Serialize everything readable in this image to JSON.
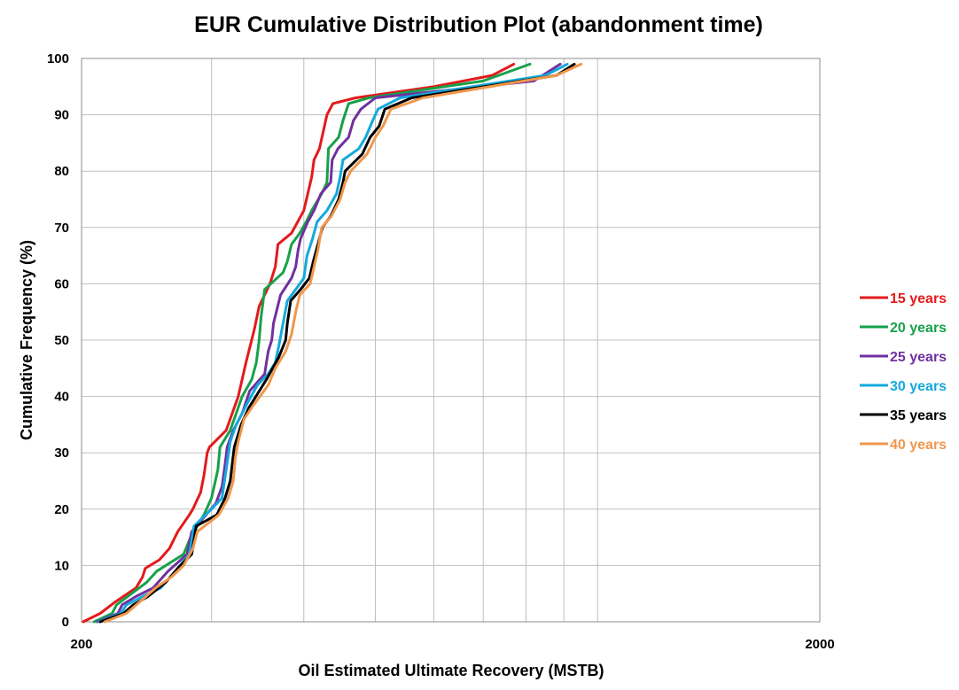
{
  "chart_data": {
    "type": "line",
    "title": "EUR Cumulative Distribution Plot (abandonment time)",
    "xlabel": "Oil Estimated Ultimate Recovery (MSTB)",
    "ylabel": "Cumulative Frequency (%)",
    "x_scale": "log",
    "xlim": [
      200,
      2000
    ],
    "ylim": [
      0,
      100
    ],
    "x_ticks": [
      "200",
      "2000"
    ],
    "y_ticks": [
      "0",
      "10",
      "20",
      "30",
      "40",
      "50",
      "60",
      "70",
      "80",
      "90",
      "100"
    ],
    "grid": true,
    "legend_position": "right",
    "series": [
      {
        "name": "15 years",
        "color": "#e31a1c",
        "points": [
          [
            201,
            0
          ],
          [
            212,
            1.5
          ],
          [
            222,
            3.5
          ],
          [
            237,
            6
          ],
          [
            242,
            8
          ],
          [
            244,
            9.5
          ],
          [
            255,
            11
          ],
          [
            263,
            13
          ],
          [
            270,
            16
          ],
          [
            280,
            19
          ],
          [
            283,
            20
          ],
          [
            290,
            23
          ],
          [
            293,
            26
          ],
          [
            296,
            30
          ],
          [
            298,
            31
          ],
          [
            314,
            34
          ],
          [
            326,
            40
          ],
          [
            334,
            46
          ],
          [
            343,
            52
          ],
          [
            348,
            56
          ],
          [
            360,
            60
          ],
          [
            366,
            63
          ],
          [
            369,
            67
          ],
          [
            385,
            69
          ],
          [
            400,
            73
          ],
          [
            410,
            79
          ],
          [
            413,
            82
          ],
          [
            420,
            84
          ],
          [
            425,
            87
          ],
          [
            430,
            90
          ],
          [
            438,
            92
          ],
          [
            470,
            93
          ],
          [
            600,
            95
          ],
          [
            720,
            97
          ],
          [
            770,
            99
          ]
        ]
      },
      {
        "name": "20 years",
        "color": "#17a14a",
        "points": [
          [
            208,
            0
          ],
          [
            220,
            1.5
          ],
          [
            223,
            3
          ],
          [
            231,
            4.5
          ],
          [
            245,
            7
          ],
          [
            253,
            9
          ],
          [
            275,
            12
          ],
          [
            281,
            15
          ],
          [
            293,
            19
          ],
          [
            300,
            22
          ],
          [
            306,
            27
          ],
          [
            308,
            31
          ],
          [
            318,
            34
          ],
          [
            324,
            37
          ],
          [
            330,
            40
          ],
          [
            340,
            43
          ],
          [
            345,
            46
          ],
          [
            348,
            50
          ],
          [
            350,
            54
          ],
          [
            354,
            59
          ],
          [
            375,
            62
          ],
          [
            380,
            64
          ],
          [
            385,
            67
          ],
          [
            395,
            69
          ],
          [
            403,
            71
          ],
          [
            410,
            73
          ],
          [
            423,
            76
          ],
          [
            430,
            78
          ],
          [
            432,
            84
          ],
          [
            446,
            86
          ],
          [
            452,
            89
          ],
          [
            460,
            92
          ],
          [
            490,
            93
          ],
          [
            700,
            96
          ],
          [
            810,
            99
          ]
        ]
      },
      {
        "name": "25 years",
        "color": "#7030a0",
        "points": [
          [
            210,
            0
          ],
          [
            224,
            1.5
          ],
          [
            227,
            3
          ],
          [
            237,
            4.5
          ],
          [
            250,
            6
          ],
          [
            262,
            9
          ],
          [
            278,
            12
          ],
          [
            282,
            16
          ],
          [
            295,
            19
          ],
          [
            304,
            21
          ],
          [
            310,
            24
          ],
          [
            313,
            28
          ],
          [
            315,
            31
          ],
          [
            321,
            34
          ],
          [
            330,
            37
          ],
          [
            338,
            41
          ],
          [
            354,
            44
          ],
          [
            358,
            48
          ],
          [
            362,
            50
          ],
          [
            364,
            53
          ],
          [
            372,
            58
          ],
          [
            385,
            61
          ],
          [
            390,
            63
          ],
          [
            393,
            66
          ],
          [
            396,
            68
          ],
          [
            405,
            71
          ],
          [
            413,
            73
          ],
          [
            422,
            76
          ],
          [
            435,
            78
          ],
          [
            437,
            82
          ],
          [
            445,
            84
          ],
          [
            460,
            86
          ],
          [
            467,
            89
          ],
          [
            478,
            91
          ],
          [
            500,
            93
          ],
          [
            820,
            96
          ],
          [
            890,
            99
          ]
        ]
      },
      {
        "name": "30 years",
        "color": "#14a9dc",
        "points": [
          [
            211,
            0
          ],
          [
            226,
            1.5
          ],
          [
            230,
            3
          ],
          [
            242,
            4.5
          ],
          [
            256,
            6
          ],
          [
            268,
            9
          ],
          [
            280,
            12
          ],
          [
            284,
            17
          ],
          [
            300,
            20
          ],
          [
            310,
            22
          ],
          [
            314,
            27
          ],
          [
            318,
            32
          ],
          [
            324,
            35
          ],
          [
            336,
            39
          ],
          [
            346,
            42
          ],
          [
            358,
            44
          ],
          [
            366,
            46
          ],
          [
            370,
            49
          ],
          [
            375,
            53
          ],
          [
            380,
            57
          ],
          [
            390,
            59
          ],
          [
            400,
            61
          ],
          [
            404,
            65
          ],
          [
            411,
            68
          ],
          [
            417,
            71
          ],
          [
            430,
            73
          ],
          [
            443,
            76
          ],
          [
            448,
            79
          ],
          [
            452,
            82
          ],
          [
            475,
            84
          ],
          [
            485,
            86
          ],
          [
            496,
            89
          ],
          [
            504,
            91
          ],
          [
            540,
            93
          ],
          [
            850,
            97
          ],
          [
            910,
            99
          ]
        ]
      },
      {
        "name": "35 years",
        "color": "#000000",
        "points": [
          [
            212,
            0
          ],
          [
            228,
            1.5
          ],
          [
            235,
            3
          ],
          [
            246,
            4.5
          ],
          [
            260,
            7
          ],
          [
            270,
            9.5
          ],
          [
            282,
            12
          ],
          [
            286,
            17
          ],
          [
            305,
            19
          ],
          [
            313,
            22
          ],
          [
            318,
            25
          ],
          [
            320,
            28
          ],
          [
            322,
            31
          ],
          [
            329,
            35
          ],
          [
            337,
            38
          ],
          [
            356,
            43
          ],
          [
            370,
            47
          ],
          [
            378,
            50
          ],
          [
            380,
            53
          ],
          [
            384,
            57
          ],
          [
            396,
            59
          ],
          [
            407,
            61
          ],
          [
            412,
            64
          ],
          [
            418,
            67
          ],
          [
            424,
            70
          ],
          [
            435,
            72
          ],
          [
            446,
            75
          ],
          [
            452,
            78
          ],
          [
            455,
            80
          ],
          [
            480,
            83
          ],
          [
            492,
            86
          ],
          [
            506,
            88
          ],
          [
            515,
            91
          ],
          [
            560,
            93
          ],
          [
            880,
            97
          ],
          [
            930,
            99
          ]
        ]
      },
      {
        "name": "40 years",
        "color": "#f0974c",
        "points": [
          [
            215,
            0
          ],
          [
            230,
            1.5
          ],
          [
            242,
            4
          ],
          [
            252,
            6
          ],
          [
            265,
            8
          ],
          [
            275,
            10
          ],
          [
            283,
            13
          ],
          [
            287,
            16
          ],
          [
            307,
            19
          ],
          [
            316,
            22
          ],
          [
            321,
            25
          ],
          [
            323,
            29
          ],
          [
            326,
            32
          ],
          [
            332,
            36
          ],
          [
            340,
            38
          ],
          [
            358,
            42
          ],
          [
            366,
            45
          ],
          [
            378,
            48
          ],
          [
            385,
            51
          ],
          [
            390,
            55
          ],
          [
            395,
            58
          ],
          [
            408,
            60
          ],
          [
            413,
            63
          ],
          [
            418,
            66
          ],
          [
            423,
            70
          ],
          [
            436,
            72
          ],
          [
            448,
            75
          ],
          [
            455,
            78
          ],
          [
            463,
            80
          ],
          [
            487,
            83
          ],
          [
            500,
            86
          ],
          [
            512,
            88
          ],
          [
            525,
            91
          ],
          [
            580,
            93
          ],
          [
            880,
            97
          ],
          [
            950,
            99
          ]
        ]
      }
    ]
  }
}
